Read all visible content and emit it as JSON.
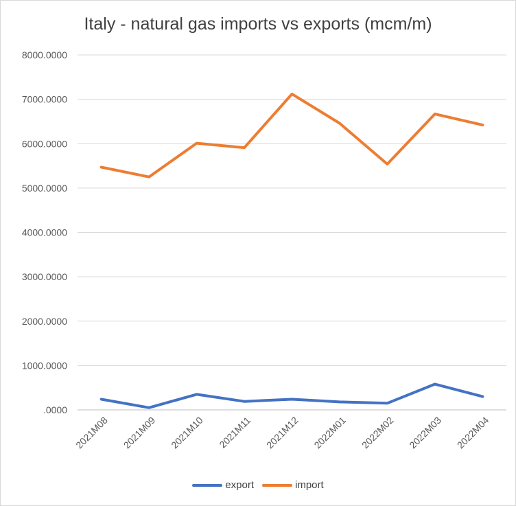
{
  "chart_data": {
    "type": "line",
    "title": "Italy - natural gas imports vs exports (mcm/m)",
    "categories": [
      "2021M08",
      "2021M09",
      "2021M10",
      "2021M11",
      "2021M12",
      "2022M01",
      "2022M02",
      "2022M03",
      "2022M04"
    ],
    "series": [
      {
        "name": "export",
        "color": "#4472c4",
        "values": [
          240,
          50,
          350,
          190,
          240,
          180,
          150,
          580,
          300
        ]
      },
      {
        "name": "import",
        "color": "#ed7d31",
        "values": [
          5470,
          5250,
          6010,
          5910,
          7120,
          6460,
          5540,
          6670,
          6420
        ]
      }
    ],
    "ylim": [
      0,
      8000
    ],
    "yticks": [
      ".0000",
      "1000.0000",
      "2000.0000",
      "3000.0000",
      "4000.0000",
      "5000.0000",
      "6000.0000",
      "7000.0000",
      "8000.0000"
    ],
    "grid": true,
    "legend_position": "bottom"
  }
}
